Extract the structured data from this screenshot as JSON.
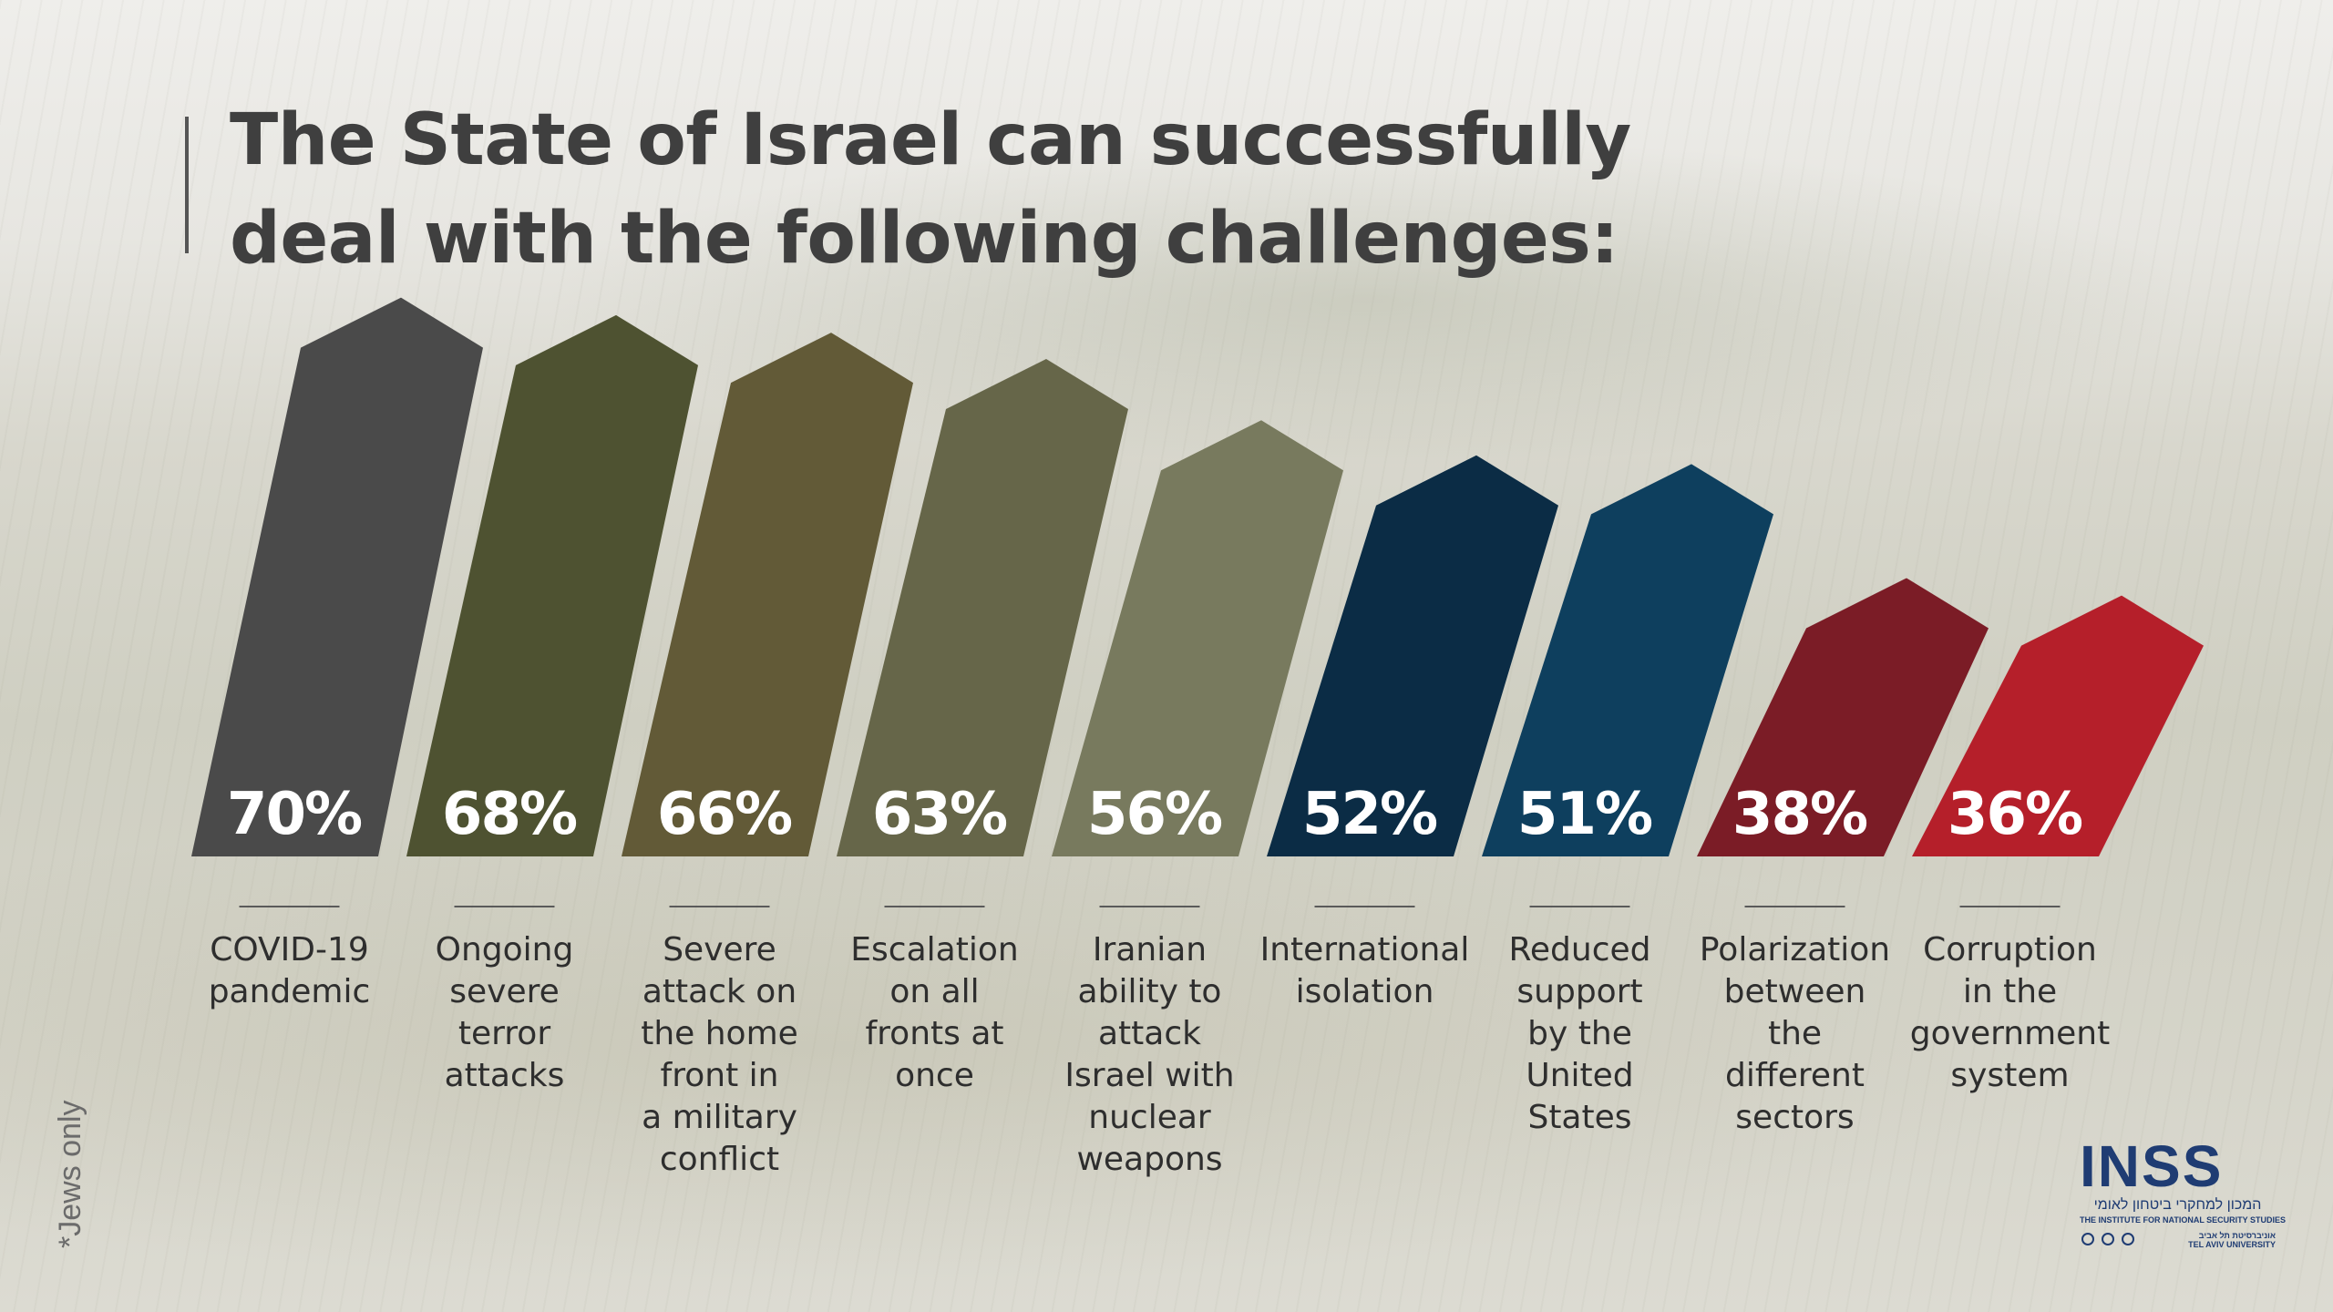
{
  "chart_data": {
    "type": "bar",
    "title": "The State of Israel can successfully deal with the following challenges:",
    "title_lines": [
      "The State of Israel can successfully",
      "deal with the following challenges:"
    ],
    "categories": [
      [
        "COVID-19",
        "pandemic"
      ],
      [
        "Ongoing",
        "severe",
        "terror",
        "attacks"
      ],
      [
        "Severe",
        "attack on",
        "the home",
        "front in",
        "a military",
        "conflict"
      ],
      [
        "Escalation",
        "on all",
        "fronts at",
        "once"
      ],
      [
        "Iranian",
        "ability to",
        "attack",
        "Israel with",
        "nuclear",
        "weapons"
      ],
      [
        "International",
        "isolation"
      ],
      [
        "Reduced",
        "support",
        "by the",
        "United",
        "States"
      ],
      [
        "Polarization",
        "between",
        "the",
        "different",
        "sectors"
      ],
      [
        "Corruption",
        "in the",
        "government",
        "system"
      ]
    ],
    "values": [
      70,
      68,
      66,
      63,
      56,
      52,
      51,
      38,
      36
    ],
    "value_labels": [
      "70%",
      "68%",
      "66%",
      "63%",
      "56%",
      "52%",
      "51%",
      "38%",
      "36%"
    ],
    "unit": "%",
    "colors": [
      "#4a4a4a",
      "#4e5231",
      "#625a37",
      "#666649",
      "#787a5e",
      "#0b2c45",
      "#0e3f5e",
      "#7b1c26",
      "#b51f2a"
    ],
    "ylim": [
      0,
      100
    ],
    "grid": false,
    "legend": "none"
  },
  "footnote": "*Jews only",
  "logo": {
    "name": "INSS",
    "hebrew_name": "המכון למחקרי ביטחון לאומי",
    "english_name": "THE INSTITUTE FOR NATIONAL SECURITY STUDIES",
    "university_english": "TEL AVIV UNIVERSITY",
    "university_hebrew": "אוניברסיטת תל אביב",
    "color": "#1f3c73"
  }
}
